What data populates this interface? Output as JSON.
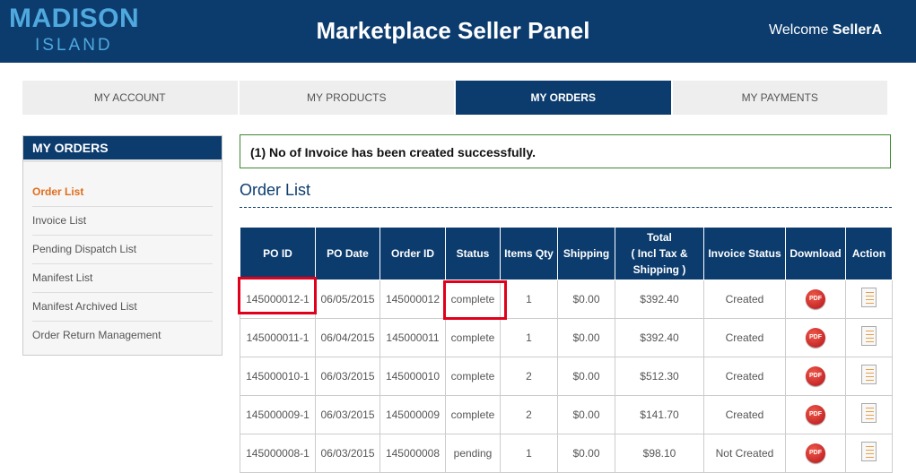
{
  "header": {
    "logo_main": "MADISON",
    "logo_sub": "ISLAND",
    "title": "Marketplace Seller Panel",
    "welcome_text": "Welcome",
    "username": "SellerA"
  },
  "nav": {
    "tabs": [
      {
        "label": "MY ACCOUNT"
      },
      {
        "label": "MY PRODUCTS"
      },
      {
        "label": "MY ORDERS"
      },
      {
        "label": "MY PAYMENTS"
      }
    ]
  },
  "sidebar": {
    "title": "MY ORDERS",
    "items": [
      {
        "label": "Order List"
      },
      {
        "label": "Invoice List"
      },
      {
        "label": "Pending Dispatch List"
      },
      {
        "label": "Manifest List"
      },
      {
        "label": "Manifest Archived List"
      },
      {
        "label": "Order Return Management"
      }
    ]
  },
  "main": {
    "success_message": "(1) No of Invoice has been created successfully.",
    "heading": "Order List",
    "columns": [
      "PO ID",
      "PO Date",
      "Order ID",
      "Status",
      "Items Qty",
      "Shipping",
      "Total\n( Incl Tax & Shipping )",
      "Invoice Status",
      "Download",
      "Action"
    ],
    "pdf_label": "PDF",
    "rows": [
      {
        "po_id": "145000012-1",
        "po_date": "06/05/2015",
        "order_id": "145000012",
        "status": "complete",
        "qty": "1",
        "shipping": "$0.00",
        "total": "$392.40",
        "invoice_status": "Created"
      },
      {
        "po_id": "145000011-1",
        "po_date": "06/04/2015",
        "order_id": "145000011",
        "status": "complete",
        "qty": "1",
        "shipping": "$0.00",
        "total": "$392.40",
        "invoice_status": "Created"
      },
      {
        "po_id": "145000010-1",
        "po_date": "06/03/2015",
        "order_id": "145000010",
        "status": "complete",
        "qty": "2",
        "shipping": "$0.00",
        "total": "$512.30",
        "invoice_status": "Created"
      },
      {
        "po_id": "145000009-1",
        "po_date": "06/03/2015",
        "order_id": "145000009",
        "status": "complete",
        "qty": "2",
        "shipping": "$0.00",
        "total": "$141.70",
        "invoice_status": "Created"
      },
      {
        "po_id": "145000008-1",
        "po_date": "06/03/2015",
        "order_id": "145000008",
        "status": "pending",
        "qty": "1",
        "shipping": "$0.00",
        "total": "$98.10",
        "invoice_status": "Not Created"
      }
    ]
  },
  "icons": {
    "download": "pdf-icon",
    "action": "document-list-icon"
  },
  "colors": {
    "brand_navy": "#0c3c6e",
    "logo_blue": "#4fa9de",
    "active_link": "#e06d1c",
    "success_border": "#3b8a2e",
    "highlight_red": "#e0001b"
  }
}
